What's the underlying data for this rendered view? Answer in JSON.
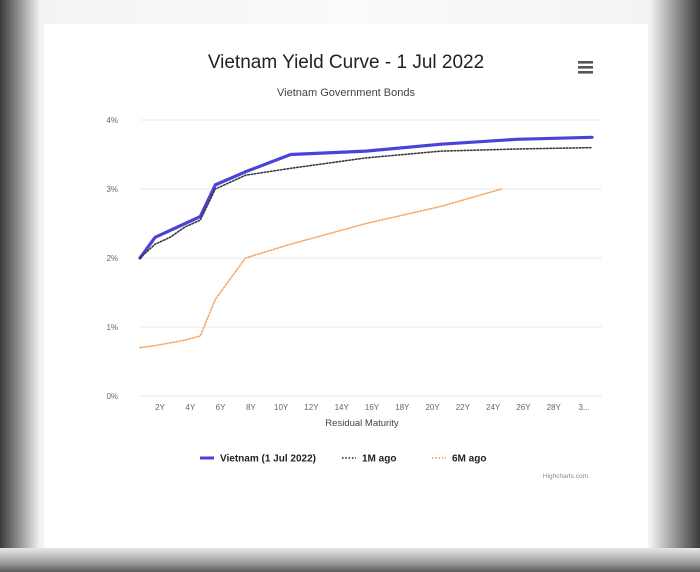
{
  "chart_data": {
    "type": "line",
    "title": "Vietnam Yield Curve - 1 Jul 2022",
    "subtitle": "Vietnam Government Bonds",
    "xlabel": "Residual Maturity",
    "ylabel": "",
    "x_ticks": [
      "2Y",
      "4Y",
      "6Y",
      "8Y",
      "10Y",
      "12Y",
      "14Y",
      "16Y",
      "18Y",
      "20Y",
      "22Y",
      "24Y",
      "26Y",
      "28Y",
      "3..."
    ],
    "y_ticks": [
      "0%",
      "1%",
      "2%",
      "3%",
      "4%"
    ],
    "x_range": [
      0,
      30
    ],
    "ylim": [
      0,
      4
    ],
    "grid": true,
    "legend_position": "bottom",
    "series": [
      {
        "name": "Vietnam (1 Jul 2022)",
        "color": "#4a43d9",
        "style": "solid",
        "x": [
          0,
          1,
          2,
          3,
          4,
          5,
          7,
          10,
          15,
          20,
          25,
          30
        ],
        "y": [
          2.0,
          2.3,
          2.4,
          2.5,
          2.6,
          3.06,
          3.25,
          3.5,
          3.55,
          3.65,
          3.72,
          3.75
        ]
      },
      {
        "name": "1M ago",
        "color": "#3a3a3a",
        "style": "dotted",
        "x": [
          0,
          1,
          2,
          3,
          4,
          5,
          7,
          10,
          15,
          20,
          25,
          30
        ],
        "y": [
          2.0,
          2.2,
          2.3,
          2.45,
          2.55,
          3.0,
          3.2,
          3.3,
          3.45,
          3.55,
          3.58,
          3.6
        ]
      },
      {
        "name": "6M ago",
        "color": "#f2a868",
        "style": "dotted",
        "x": [
          0,
          1,
          2,
          3,
          4,
          5,
          7,
          10,
          15,
          20,
          24
        ],
        "y": [
          0.7,
          0.73,
          0.77,
          0.81,
          0.87,
          1.4,
          2.0,
          2.2,
          2.5,
          2.75,
          3.0
        ]
      }
    ]
  },
  "credit": "Highcharts.com",
  "menu_icon": "hamburger-menu-icon"
}
